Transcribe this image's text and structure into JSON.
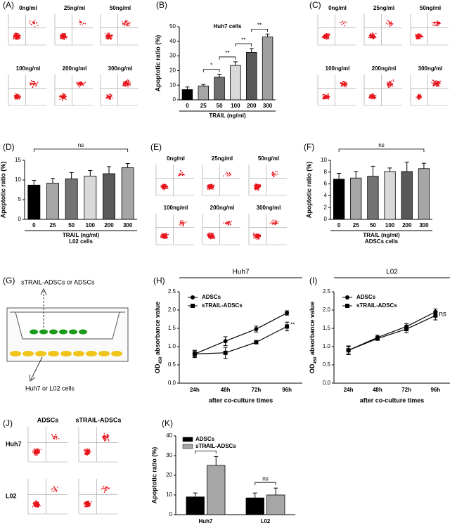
{
  "panel_labels": [
    "(A)",
    "(B)",
    "(C)",
    "(D)",
    "(E)",
    "(F)",
    "(G)",
    "(H)",
    "(I)",
    "(J)",
    "(K)"
  ],
  "flow_A": [
    "0ng/ml",
    "25ng/ml",
    "50ng/ml",
    "100ng/ml",
    "200ng/ml",
    "300ng/ml"
  ],
  "flow_C": [
    "0ng/ml",
    "25ng/ml",
    "50ng/ml",
    "100ng/ml",
    "200ng/ml",
    "300ng/ml"
  ],
  "flow_E": [
    "0ng/ml",
    "25ng/ml",
    "50ng/ml",
    "100ng/ml",
    "200ng/ml",
    "300ng/ml"
  ],
  "flow_J": {
    "columns": [
      "ADSCs",
      "sTRAIL-ADSCs"
    ],
    "rows": [
      "Huh7",
      "L02"
    ]
  },
  "diagram": {
    "top_label": "sTRAIL-ADSCs or ADSCs",
    "bottom_label": "Huh7 or L02 cells"
  },
  "chart_data": [
    {
      "type": "bar",
      "title": "Huh7 cells",
      "y_label": "Apoptotic ratio (%)",
      "x_label": "TRAIL (ng/ml)",
      "categories": [
        "0",
        "25",
        "50",
        "100",
        "200",
        "300"
      ],
      "values": [
        7,
        9.5,
        15.5,
        23.5,
        32.5,
        43
      ],
      "errors": [
        1.8,
        1,
        2,
        2.5,
        2.5,
        2
      ],
      "colors": [
        "#000000",
        "#a6a6a6",
        "#6e6e6e",
        "#d9d9d9",
        "#595959",
        "#a0a0a0"
      ],
      "ylim": [
        0,
        50
      ],
      "yticks": [
        0,
        10,
        20,
        30,
        40,
        50
      ],
      "significance": [
        {
          "label": "*",
          "between": [
            "25",
            "50"
          ]
        },
        {
          "label": "**",
          "between": [
            "50",
            "100"
          ]
        },
        {
          "label": "**",
          "between": [
            "100",
            "200"
          ]
        },
        {
          "label": "**",
          "between": [
            "200",
            "300"
          ]
        }
      ]
    },
    {
      "type": "bar",
      "y_label": "Apoptotic ratio (%)",
      "x_label": "TRAIL (ng/ml)",
      "caption": "L02 cells",
      "categories": [
        "0",
        "25",
        "50",
        "100",
        "200",
        "300"
      ],
      "values": [
        8.7,
        9.2,
        10.3,
        11,
        11.6,
        13.1
      ],
      "errors": [
        1.2,
        1.2,
        1.6,
        1.4,
        1.8,
        1.1
      ],
      "colors": [
        "#000000",
        "#a6a6a6",
        "#737373",
        "#d9d9d9",
        "#595959",
        "#a6a6a6"
      ],
      "ylim": [
        0,
        15
      ],
      "yticks": [
        0,
        5,
        10,
        15
      ],
      "significance": [
        {
          "label": "ns",
          "between": [
            "0",
            "300"
          ]
        }
      ]
    },
    {
      "type": "bar",
      "y_label": "Apoptotic ratio (%)",
      "x_label": "TRAIL (ng/ml)",
      "caption": "ADSCs cells",
      "categories": [
        "0",
        "25",
        "50",
        "100",
        "200",
        "300"
      ],
      "values": [
        6.8,
        7,
        7.3,
        8.1,
        8.1,
        8.6
      ],
      "errors": [
        1,
        1.1,
        1.7,
        0.6,
        1.6,
        0.9
      ],
      "colors": [
        "#000000",
        "#a6a6a6",
        "#737373",
        "#d9d9d9",
        "#595959",
        "#a6a6a6"
      ],
      "ylim": [
        0,
        10
      ],
      "yticks": [
        0,
        2,
        4,
        6,
        8,
        10
      ],
      "significance": [
        {
          "label": "ns",
          "between": [
            "0",
            "300"
          ]
        }
      ]
    },
    {
      "type": "line",
      "title": "Huh7",
      "y_label": {
        "main": "OD",
        "sub": "450",
        "rest": " absorbance value"
      },
      "x_label": "after co-culture times",
      "categories": [
        "24h",
        "48h",
        "72h",
        "96h"
      ],
      "series": [
        {
          "name": "ADSCs",
          "color": "#000000",
          "marker": "circle",
          "values": [
            0.8,
            1.15,
            1.48,
            1.92
          ],
          "errors": [
            0.1,
            0.12,
            0.08,
            0.06
          ]
        },
        {
          "name": "sTRAIL-ADSCs",
          "color": "#000000",
          "marker": "square",
          "values": [
            0.8,
            0.83,
            1.12,
            1.55
          ],
          "errors": [
            0.08,
            0.15,
            0.03,
            0.12
          ]
        }
      ],
      "ylim": [
        0,
        2.5
      ],
      "yticks": [
        {
          "value": 0,
          "label": "0.0"
        },
        0.5,
        {
          "value": 1,
          "label": "1.0"
        },
        1.5,
        {
          "value": 2,
          "label": "2.0"
        },
        2.5
      ],
      "annotation": "**"
    },
    {
      "type": "line",
      "title": "L02",
      "y_label": {
        "main": "OD",
        "sub": "450",
        "rest": " absorbance value"
      },
      "x_label": "after co-culture times",
      "categories": [
        "24h",
        "48h",
        "72h",
        "96h"
      ],
      "series": [
        {
          "name": "ADSCs",
          "color": "#000000",
          "marker": "circle",
          "values": [
            0.9,
            1.25,
            1.55,
            1.95
          ],
          "errors": [
            0.1,
            0.06,
            0.08,
            0.08
          ]
        },
        {
          "name": "sTRAIL-ADSCs",
          "color": "#000000",
          "marker": "square",
          "values": [
            0.9,
            1.22,
            1.48,
            1.85
          ],
          "errors": [
            0.12,
            0.05,
            0.1,
            0.12
          ]
        }
      ],
      "ylim": [
        0,
        2.5
      ],
      "yticks": [
        {
          "value": 0,
          "label": "0.0"
        },
        0.5,
        {
          "value": 1,
          "label": "1.0"
        },
        1.5,
        {
          "value": 2,
          "label": "2.0"
        },
        2.5
      ],
      "annotation": "ns"
    },
    {
      "type": "grouped_bar",
      "y_label": "Apoptotic ratio (%)",
      "categories": [
        "Huh7",
        "L02"
      ],
      "series": [
        {
          "name": "ADSCs",
          "color": "#000000",
          "values": [
            9,
            8.5
          ],
          "errors": [
            2,
            2.5
          ]
        },
        {
          "name": "sTRAIL-ADSCs",
          "color": "#a6a6a6",
          "values": [
            25,
            10
          ],
          "errors": [
            4.5,
            3.5
          ]
        }
      ],
      "ylim": [
        0,
        40
      ],
      "yticks": [
        0,
        10,
        20,
        30,
        40
      ],
      "significance": [
        {
          "label": "*",
          "category": "Huh7"
        },
        {
          "label": "ns",
          "category": "L02"
        }
      ]
    }
  ]
}
